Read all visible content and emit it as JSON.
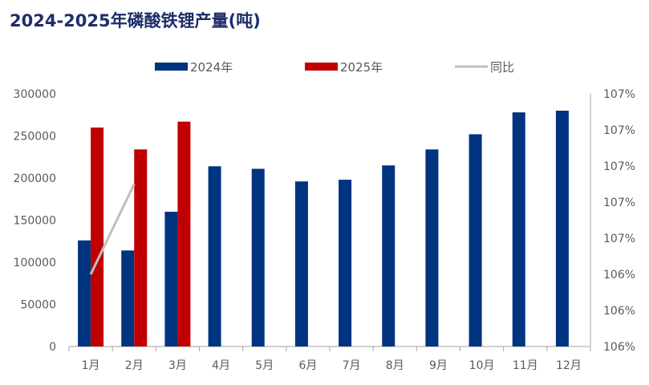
{
  "chart_data": {
    "type": "bar",
    "title": "2024-2025年磷酸铁锂产量(吨)",
    "categories": [
      "1月",
      "2月",
      "3月",
      "4月",
      "5月",
      "6月",
      "7月",
      "8月",
      "9月",
      "10月",
      "11月",
      "12月"
    ],
    "series": [
      {
        "name": "2024年",
        "type": "bar",
        "color": "#003380",
        "values": [
          126000,
          114000,
          160000,
          214000,
          211000,
          196000,
          198000,
          215000,
          234000,
          252000,
          278000,
          280000
        ]
      },
      {
        "name": "2025年",
        "type": "bar",
        "color": "#c00000",
        "values": [
          260000,
          234000,
          267000,
          null,
          null,
          null,
          null,
          null,
          null,
          null,
          null,
          null
        ]
      },
      {
        "name": "同比",
        "type": "line",
        "color": "#bfbfbf",
        "axis": "right",
        "values": [
          106.4,
          106.9,
          null,
          null,
          null,
          null,
          null,
          null,
          null,
          null,
          null,
          null
        ]
      }
    ],
    "ylim": [
      0,
      300000
    ],
    "yticks": [
      "0",
      "50000",
      "100000",
      "150000",
      "200000",
      "250000",
      "300000"
    ],
    "y2ticks": [
      "106%",
      "106%",
      "106%",
      "107%",
      "107%",
      "107%",
      "107%",
      "107%"
    ],
    "y2lim": [
      106.0,
      107.4
    ],
    "legend_position": "top"
  }
}
